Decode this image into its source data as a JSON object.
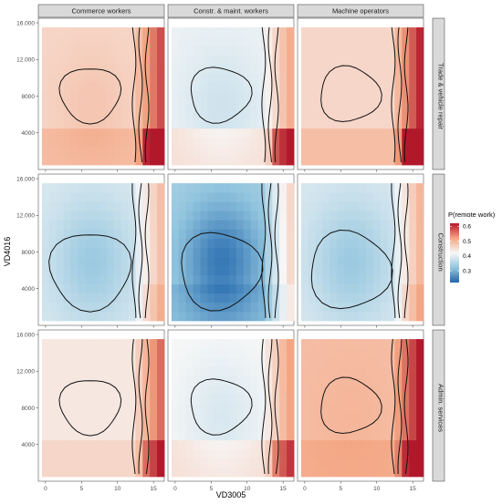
{
  "chart_data": {
    "type": "heatmap",
    "xlabel": "VD3005",
    "ylabel": "VD4016",
    "x_ticks": [
      0,
      5,
      10,
      15
    ],
    "y_ticks": [
      4000,
      8000,
      12000,
      16000
    ],
    "y_tick_labels": [
      "4000",
      "8000",
      "12.000",
      "16.000"
    ],
    "xlim": [
      -1,
      16.5
    ],
    "ylim": [
      0,
      16500
    ],
    "column_facets": [
      "Commerce workers",
      "Constr. & maint. workers",
      "Machine operators"
    ],
    "row_facets": [
      "Trade & vehicle repair",
      "Construction",
      "Admin. services"
    ],
    "legend": {
      "title": "P(remote work)",
      "range": [
        0.22,
        0.62
      ],
      "ticks": [
        0.3,
        0.4,
        0.5,
        0.6
      ],
      "colors": [
        "#2166ac",
        "#92c5de",
        "#f7f7f7",
        "#f4a582",
        "#b2182b"
      ]
    },
    "panels": [
      {
        "row": 0,
        "col": 0,
        "base": 0.46,
        "bump": 0.02,
        "edge": 0.12,
        "lowInc": 0.03,
        "corner": 0.06
      },
      {
        "row": 0,
        "col": 1,
        "base": 0.41,
        "bump": -0.03,
        "edge": 0.1,
        "lowInc": 0.04,
        "corner": 0.08
      },
      {
        "row": 0,
        "col": 2,
        "base": 0.46,
        "bump": 0.0,
        "edge": 0.15,
        "lowInc": 0.03,
        "corner": 0.07
      },
      {
        "row": 1,
        "col": 0,
        "base": 0.39,
        "bump": -0.06,
        "edge": 0.1,
        "lowInc": 0.0,
        "corner": 0.02
      },
      {
        "row": 1,
        "col": 1,
        "base": 0.34,
        "bump": -0.1,
        "edge": 0.12,
        "lowInc": -0.02,
        "corner": 0.0
      },
      {
        "row": 1,
        "col": 2,
        "base": 0.39,
        "bump": -0.06,
        "edge": 0.11,
        "lowInc": 0.0,
        "corner": 0.02
      },
      {
        "row": 2,
        "col": 0,
        "base": 0.44,
        "bump": 0.0,
        "edge": 0.12,
        "lowInc": 0.02,
        "corner": 0.04
      },
      {
        "row": 2,
        "col": 1,
        "base": 0.42,
        "bump": -0.03,
        "edge": 0.1,
        "lowInc": 0.03,
        "corner": 0.05
      },
      {
        "row": 2,
        "col": 2,
        "base": 0.49,
        "bump": 0.01,
        "edge": 0.13,
        "lowInc": 0.02,
        "corner": 0.03
      }
    ]
  }
}
